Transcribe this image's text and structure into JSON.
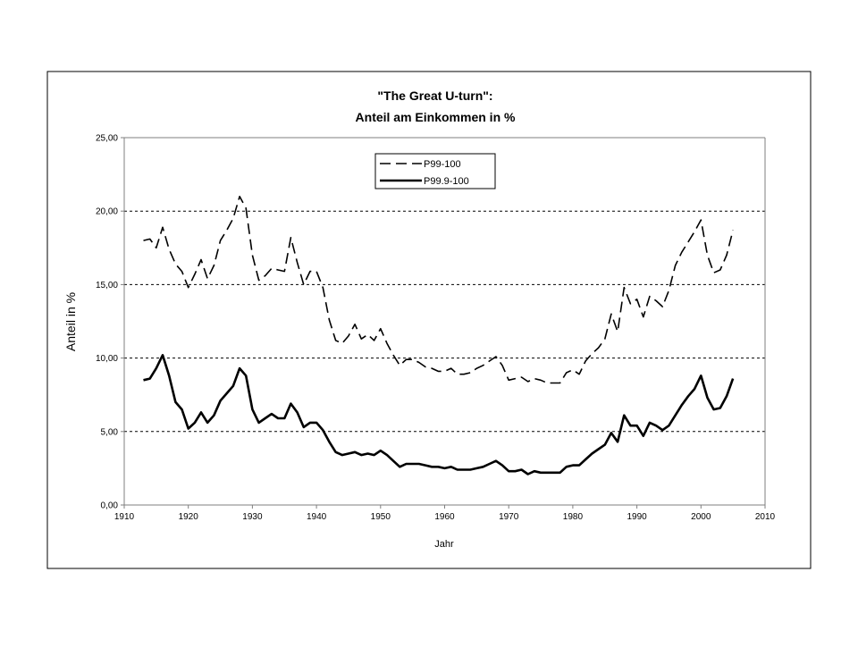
{
  "chart_data": {
    "type": "line",
    "title": "\"The Great U-turn\":",
    "subtitle": "Anteil am Einkommen in %",
    "xlabel": "Jahr",
    "ylabel": "Anteil in %",
    "xlim": [
      1910,
      2010
    ],
    "ylim": [
      0,
      25
    ],
    "xticks": [
      "1910",
      "1920",
      "1930",
      "1940",
      "1950",
      "1960",
      "1970",
      "1980",
      "1990",
      "2000",
      "2010"
    ],
    "yticks": [
      "0,00",
      "5,00",
      "10,00",
      "15,00",
      "20,00",
      "25,00"
    ],
    "grid": "horizontal dashed",
    "legend_position": "top-center",
    "series": [
      {
        "name": "P99-100",
        "style": "dashed",
        "color": "#000000",
        "points": [
          [
            1913,
            18.0
          ],
          [
            1914,
            18.1
          ],
          [
            1915,
            17.5
          ],
          [
            1916,
            18.9
          ],
          [
            1917,
            17.4
          ],
          [
            1918,
            16.4
          ],
          [
            1919,
            15.9
          ],
          [
            1920,
            14.8
          ],
          [
            1921,
            15.7
          ],
          [
            1922,
            16.7
          ],
          [
            1923,
            15.4
          ],
          [
            1924,
            16.3
          ],
          [
            1925,
            18.0
          ],
          [
            1926,
            18.7
          ],
          [
            1927,
            19.5
          ],
          [
            1928,
            21.0
          ],
          [
            1929,
            20.2
          ],
          [
            1930,
            17.0
          ],
          [
            1931,
            15.3
          ],
          [
            1932,
            15.6
          ],
          [
            1933,
            16.1
          ],
          [
            1934,
            16.0
          ],
          [
            1935,
            15.9
          ],
          [
            1936,
            18.2
          ],
          [
            1937,
            16.5
          ],
          [
            1938,
            15.0
          ],
          [
            1939,
            15.9
          ],
          [
            1940,
            15.9
          ],
          [
            1941,
            14.8
          ],
          [
            1942,
            12.6
          ],
          [
            1943,
            11.2
          ],
          [
            1944,
            11.0
          ],
          [
            1945,
            11.5
          ],
          [
            1946,
            12.3
          ],
          [
            1947,
            11.3
          ],
          [
            1948,
            11.6
          ],
          [
            1949,
            11.2
          ],
          [
            1950,
            12.0
          ],
          [
            1951,
            11.0
          ],
          [
            1952,
            10.2
          ],
          [
            1953,
            9.5
          ],
          [
            1954,
            9.9
          ],
          [
            1955,
            9.9
          ],
          [
            1956,
            9.7
          ],
          [
            1957,
            9.4
          ],
          [
            1958,
            9.3
          ],
          [
            1959,
            9.1
          ],
          [
            1960,
            9.1
          ],
          [
            1961,
            9.3
          ],
          [
            1962,
            8.9
          ],
          [
            1963,
            8.9
          ],
          [
            1964,
            9.0
          ],
          [
            1965,
            9.3
          ],
          [
            1966,
            9.5
          ],
          [
            1967,
            9.8
          ],
          [
            1968,
            10.1
          ],
          [
            1969,
            9.5
          ],
          [
            1970,
            8.5
          ],
          [
            1971,
            8.6
          ],
          [
            1972,
            8.7
          ],
          [
            1973,
            8.4
          ],
          [
            1974,
            8.6
          ],
          [
            1975,
            8.5
          ],
          [
            1976,
            8.3
          ],
          [
            1977,
            8.3
          ],
          [
            1978,
            8.3
          ],
          [
            1979,
            9.0
          ],
          [
            1980,
            9.2
          ],
          [
            1981,
            8.9
          ],
          [
            1982,
            9.8
          ],
          [
            1983,
            10.3
          ],
          [
            1984,
            10.7
          ],
          [
            1985,
            11.3
          ],
          [
            1986,
            13.0
          ],
          [
            1987,
            11.8
          ],
          [
            1988,
            14.8
          ],
          [
            1989,
            13.7
          ],
          [
            1990,
            14.0
          ],
          [
            1991,
            12.8
          ],
          [
            1992,
            14.2
          ],
          [
            1993,
            13.9
          ],
          [
            1994,
            13.5
          ],
          [
            1995,
            14.6
          ],
          [
            1996,
            16.3
          ],
          [
            1997,
            17.2
          ],
          [
            1998,
            17.9
          ],
          [
            1999,
            18.6
          ],
          [
            2000,
            19.4
          ],
          [
            2001,
            17.0
          ],
          [
            2002,
            15.8
          ],
          [
            2003,
            16.0
          ],
          [
            2004,
            17.0
          ],
          [
            2005,
            18.7
          ]
        ]
      },
      {
        "name": "P99.9-100",
        "style": "solid",
        "color": "#000000",
        "points": [
          [
            1913,
            8.5
          ],
          [
            1914,
            8.6
          ],
          [
            1915,
            9.3
          ],
          [
            1916,
            10.2
          ],
          [
            1917,
            8.8
          ],
          [
            1918,
            7.0
          ],
          [
            1919,
            6.5
          ],
          [
            1920,
            5.2
          ],
          [
            1921,
            5.6
          ],
          [
            1922,
            6.3
          ],
          [
            1923,
            5.6
          ],
          [
            1924,
            6.1
          ],
          [
            1925,
            7.1
          ],
          [
            1926,
            7.6
          ],
          [
            1927,
            8.1
          ],
          [
            1928,
            9.3
          ],
          [
            1929,
            8.8
          ],
          [
            1930,
            6.5
          ],
          [
            1931,
            5.6
          ],
          [
            1932,
            5.9
          ],
          [
            1933,
            6.2
          ],
          [
            1934,
            5.9
          ],
          [
            1935,
            5.9
          ],
          [
            1936,
            6.9
          ],
          [
            1937,
            6.3
          ],
          [
            1938,
            5.3
          ],
          [
            1939,
            5.6
          ],
          [
            1940,
            5.6
          ],
          [
            1941,
            5.1
          ],
          [
            1942,
            4.3
          ],
          [
            1943,
            3.6
          ],
          [
            1944,
            3.4
          ],
          [
            1945,
            3.5
          ],
          [
            1946,
            3.6
          ],
          [
            1947,
            3.4
          ],
          [
            1948,
            3.5
          ],
          [
            1949,
            3.4
          ],
          [
            1950,
            3.7
          ],
          [
            1951,
            3.4
          ],
          [
            1952,
            3.0
          ],
          [
            1953,
            2.6
          ],
          [
            1954,
            2.8
          ],
          [
            1955,
            2.8
          ],
          [
            1956,
            2.8
          ],
          [
            1957,
            2.7
          ],
          [
            1958,
            2.6
          ],
          [
            1959,
            2.6
          ],
          [
            1960,
            2.5
          ],
          [
            1961,
            2.6
          ],
          [
            1962,
            2.4
          ],
          [
            1963,
            2.4
          ],
          [
            1964,
            2.4
          ],
          [
            1965,
            2.5
          ],
          [
            1966,
            2.6
          ],
          [
            1967,
            2.8
          ],
          [
            1968,
            3.0
          ],
          [
            1969,
            2.7
          ],
          [
            1970,
            2.3
          ],
          [
            1971,
            2.3
          ],
          [
            1972,
            2.4
          ],
          [
            1973,
            2.1
          ],
          [
            1974,
            2.3
          ],
          [
            1975,
            2.2
          ],
          [
            1976,
            2.2
          ],
          [
            1977,
            2.2
          ],
          [
            1978,
            2.2
          ],
          [
            1979,
            2.6
          ],
          [
            1980,
            2.7
          ],
          [
            1981,
            2.7
          ],
          [
            1982,
            3.1
          ],
          [
            1983,
            3.5
          ],
          [
            1984,
            3.8
          ],
          [
            1985,
            4.1
          ],
          [
            1986,
            4.9
          ],
          [
            1987,
            4.3
          ],
          [
            1988,
            6.1
          ],
          [
            1989,
            5.4
          ],
          [
            1990,
            5.4
          ],
          [
            1991,
            4.7
          ],
          [
            1992,
            5.6
          ],
          [
            1993,
            5.4
          ],
          [
            1994,
            5.1
          ],
          [
            1995,
            5.4
          ],
          [
            1996,
            6.1
          ],
          [
            1997,
            6.8
          ],
          [
            1998,
            7.4
          ],
          [
            1999,
            7.9
          ],
          [
            2000,
            8.8
          ],
          [
            2001,
            7.3
          ],
          [
            2002,
            6.5
          ],
          [
            2003,
            6.6
          ],
          [
            2004,
            7.4
          ],
          [
            2005,
            8.6
          ]
        ]
      }
    ]
  }
}
